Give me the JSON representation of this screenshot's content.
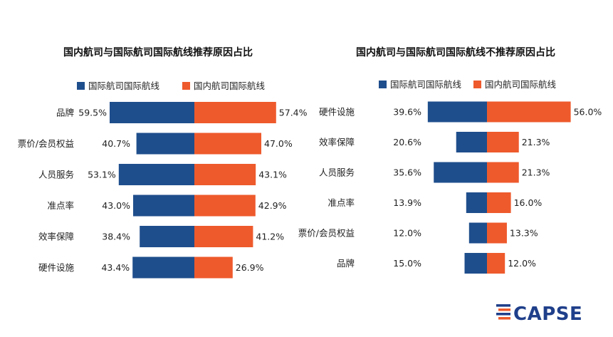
{
  "colors": {
    "international": "#1f4e8c",
    "domestic": "#ee5a2c",
    "logo_blue": "#1f3f8a",
    "logo_orange": "#ee5a2c"
  },
  "logo": {
    "text": "CAPSE"
  },
  "chart_data": [
    {
      "type": "bar",
      "title": "国内航司与国际航司国际航线推荐原因占比",
      "legend": [
        "国际航司国际航线",
        "国内航司国际航线"
      ],
      "legend_placement": "top",
      "categories": [
        "品牌",
        "票价/会员权益",
        "人员服务",
        "准点率",
        "效率保障",
        "硬件设施"
      ],
      "series": [
        {
          "name": "国际航司国际航线",
          "values": [
            59.5,
            40.7,
            53.1,
            43.0,
            38.4,
            43.4
          ],
          "labels": [
            "59.5%",
            "40.7%",
            "53.1%",
            "43.0%",
            "38.4%",
            "43.4%"
          ]
        },
        {
          "name": "国内航司国际航线",
          "values": [
            57.4,
            47.0,
            43.1,
            42.9,
            41.2,
            26.9
          ],
          "labels": [
            "57.4%",
            "47.0%",
            "43.1%",
            "42.9%",
            "41.2%",
            "26.9%"
          ]
        }
      ],
      "grid": false
    },
    {
      "type": "bar",
      "title": "国内航司与国际航司国际航线不推荐原因占比",
      "legend": [
        "国际航司国际航线",
        "国内航司国际航线"
      ],
      "legend_placement": "top",
      "categories": [
        "硬件设施",
        "效率保障",
        "人员服务",
        "准点率",
        "票价/会员权益",
        "品牌"
      ],
      "series": [
        {
          "name": "国际航司国际航线",
          "values": [
            39.6,
            20.6,
            35.6,
            13.9,
            12.0,
            15.0
          ],
          "labels": [
            "39.6%",
            "20.6%",
            "35.6%",
            "13.9%",
            "12.0%",
            "15.0%"
          ]
        },
        {
          "name": "国内航司国际航线",
          "values": [
            56.0,
            21.3,
            21.3,
            16.0,
            13.3,
            12.0
          ],
          "labels": [
            "56.0%",
            "21.3%",
            "21.3%",
            "16.0%",
            "13.3%",
            "12.0%"
          ]
        }
      ],
      "grid": false
    }
  ]
}
